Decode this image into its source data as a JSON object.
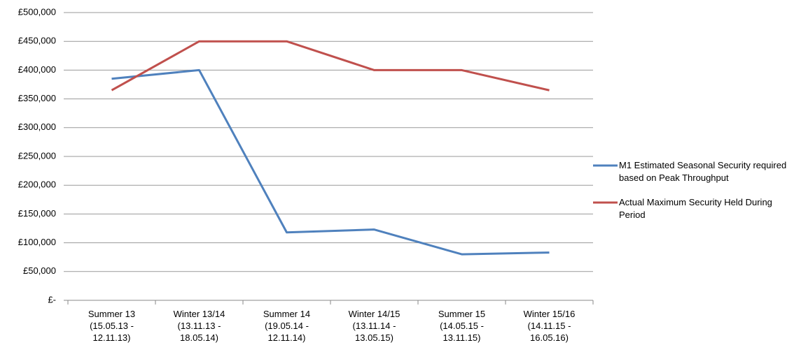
{
  "chart_data": {
    "type": "line",
    "categories": [
      "Summer 13\n(15.05.13 -\n12.11.13)",
      "Winter 13/14\n(13.11.13 -\n18.05.14)",
      "Summer 14\n(19.05.14 -\n12.11.14)",
      "Winter 14/15\n(13.11.14 -\n13.05.15)",
      "Summer 15\n(14.05.15 -\n13.11.15)",
      "Winter 15/16\n(14.11.15 -\n16.05.16)"
    ],
    "series": [
      {
        "name": "M1 Estimated Seasonal Security required based on Peak Throughput",
        "color": "#4f81bd",
        "values": [
          385000,
          400000,
          118000,
          123000,
          80000,
          83000
        ]
      },
      {
        "name": "Actual Maximum Security Held During Period",
        "color": "#c0504d",
        "values": [
          365000,
          450000,
          450000,
          400000,
          400000,
          365000
        ]
      }
    ],
    "ylim": [
      0,
      500000
    ],
    "yticks": [
      {
        "value": 0,
        "label": "£-"
      },
      {
        "value": 50000,
        "label": "£50,000"
      },
      {
        "value": 100000,
        "label": "£100,000"
      },
      {
        "value": 150000,
        "label": "£150,000"
      },
      {
        "value": 200000,
        "label": "£200,000"
      },
      {
        "value": 250000,
        "label": "£250,000"
      },
      {
        "value": 300000,
        "label": "£300,000"
      },
      {
        "value": 350000,
        "label": "£350,000"
      },
      {
        "value": 400000,
        "label": "£400,000"
      },
      {
        "value": 450000,
        "label": "£450,000"
      },
      {
        "value": 500000,
        "label": "£500,000"
      }
    ],
    "grid": true,
    "legend": "right"
  }
}
